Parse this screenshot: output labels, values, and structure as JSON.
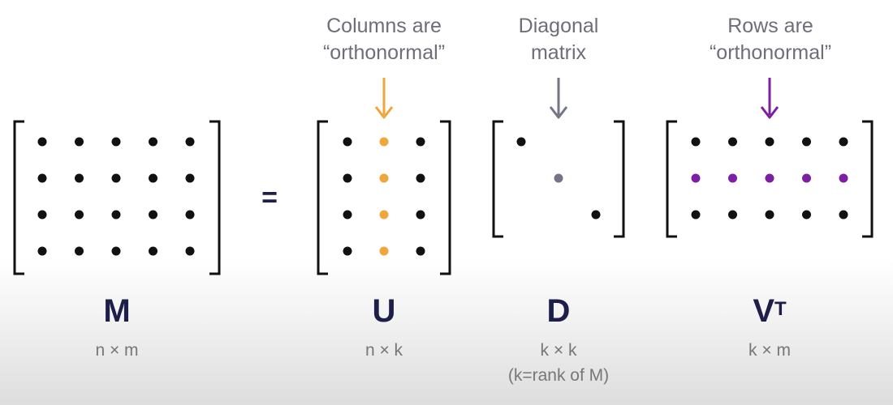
{
  "colors": {
    "dark": "#111111",
    "orange": "#EFA63A",
    "gray": "#75758A",
    "purple": "#7E1EA2",
    "bracket": "#111111",
    "title": "#1e1e4a"
  },
  "equals_sign": "=",
  "matrices": {
    "M": {
      "title": "M",
      "dims": "n × m",
      "rows": 4,
      "cols": 5
    },
    "U": {
      "title": "U",
      "dims": "n × k",
      "rows": 4,
      "cols": 3,
      "highlight_col": 2,
      "annotation": {
        "line1": "Columns are",
        "line2": "“orthonormal”"
      }
    },
    "D": {
      "title": "D",
      "dims": "k × k",
      "note": "(k=rank of M)",
      "annotation": {
        "line1": "Diagonal",
        "line2": "matrix"
      }
    },
    "VT": {
      "title": "V",
      "sup": "T",
      "dims": "k × m",
      "rows": 3,
      "cols": 5,
      "highlight_row": 2,
      "annotation": {
        "line1": "Rows are",
        "line2": "“orthonormal”"
      }
    }
  }
}
